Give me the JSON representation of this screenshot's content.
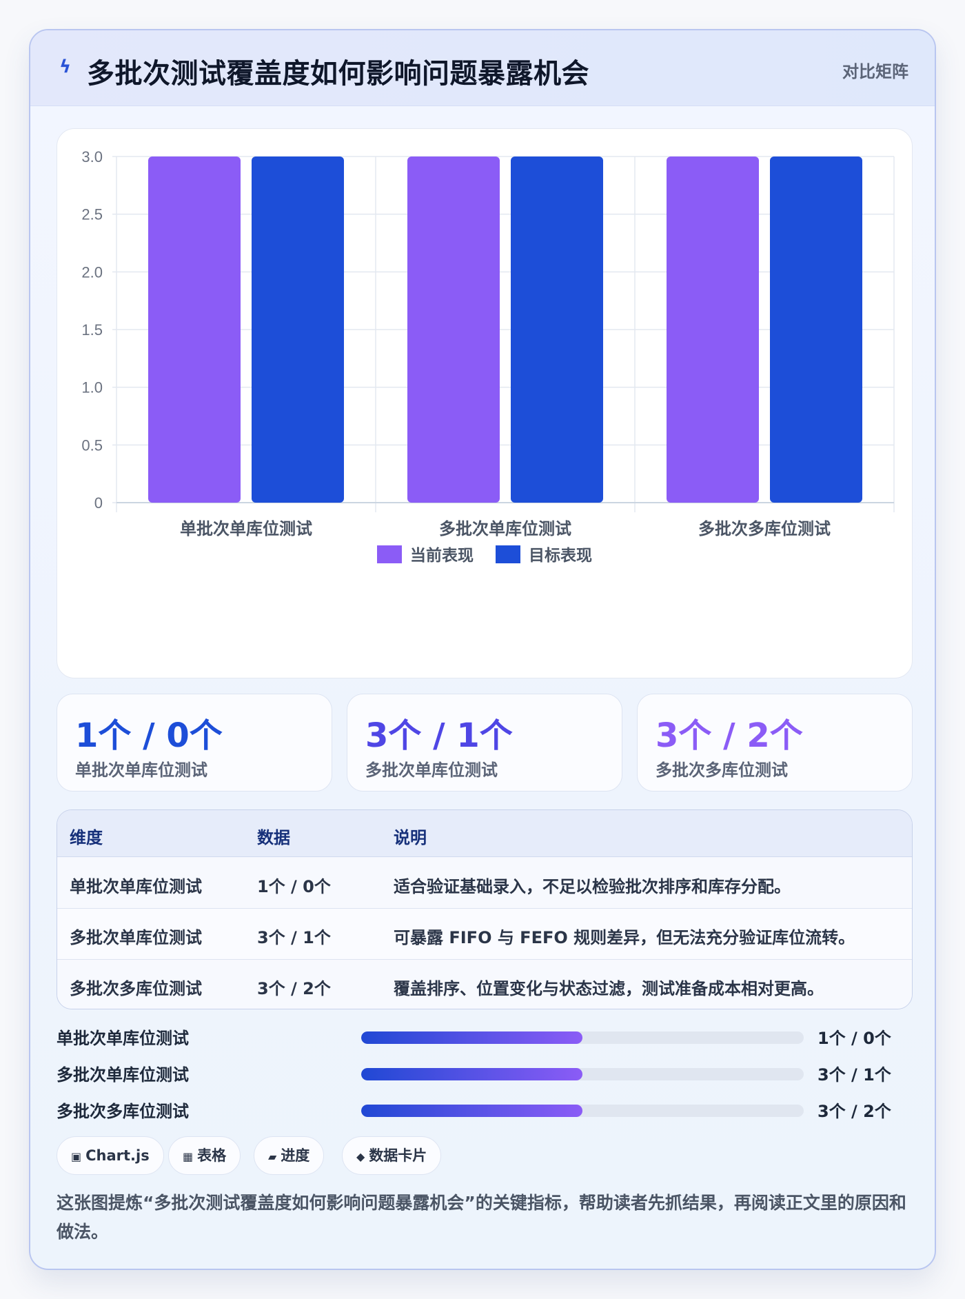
{
  "header": {
    "icon": "lightning-icon",
    "title": "多批次测试覆盖度如何影响问题暴露机会",
    "tag": "对比矩阵"
  },
  "chart_data": {
    "type": "bar",
    "categories": [
      "单批次单库位测试",
      "多批次单库位测试",
      "多批次多库位测试"
    ],
    "series": [
      {
        "name": "当前表现",
        "values": [
          3,
          3,
          3
        ],
        "color": "#8b5cf6"
      },
      {
        "name": "目标表现",
        "values": [
          3,
          3,
          3
        ],
        "color": "#1d4ed8"
      }
    ],
    "ylim": [
      0,
      3
    ],
    "yticks": [
      "0",
      "0.5",
      "1.0",
      "1.5",
      "2.0",
      "2.5",
      "3.0"
    ],
    "grid": true,
    "legend": "bottom"
  },
  "stats": [
    {
      "value": "1个 / 0个",
      "label": "单批次单库位测试",
      "color": "#1d4ed8"
    },
    {
      "value": "3个 / 1个",
      "label": "多批次单库位测试",
      "color": "#4f46e5"
    },
    {
      "value": "3个 / 2个",
      "label": "多批次多库位测试",
      "color": "#8b5cf6"
    }
  ],
  "table": {
    "headers": [
      "维度",
      "数据",
      "说明"
    ],
    "rows": [
      [
        "单批次单库位测试",
        "1个 / 0个",
        "适合验证基础录入，不足以检验批次排序和库存分配。"
      ],
      [
        "多批次单库位测试",
        "3个 / 1个",
        "可暴露 FIFO 与 FEFO 规则差异，但无法充分验证库位流转。"
      ],
      [
        "多批次多库位测试",
        "3个 / 2个",
        "覆盖排序、位置变化与状态过滤，测试准备成本相对更高。"
      ]
    ]
  },
  "progress": [
    {
      "label": "单批次单库位测试",
      "value": "1个 / 0个",
      "fraction": 0.5
    },
    {
      "label": "多批次单库位测试",
      "value": "3个 / 1个",
      "fraction": 0.5
    },
    {
      "label": "多批次多库位测试",
      "value": "3个 / 2个",
      "fraction": 0.5
    }
  ],
  "chips": [
    {
      "icon": "chart-icon",
      "glyph": "▣",
      "label": "Chart.js"
    },
    {
      "icon": "table-icon",
      "glyph": "▦",
      "label": "表格"
    },
    {
      "icon": "progress-icon",
      "glyph": "▰",
      "label": "进度"
    },
    {
      "icon": "diamond-icon",
      "glyph": "◆",
      "label": "数据卡片"
    }
  ],
  "description": "这张图提炼“多批次测试覆盖度如何影响问题暴露机会”的关键指标，帮助读者先抓结果，再阅读正文里的原因和做法。"
}
